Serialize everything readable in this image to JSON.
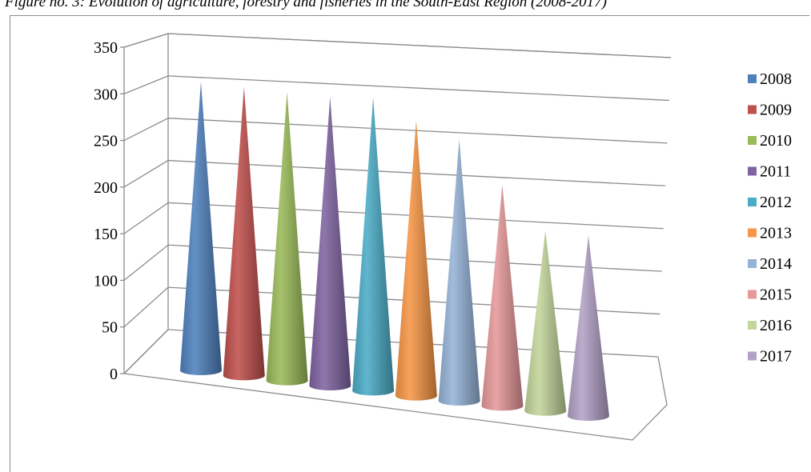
{
  "caption": "Figure no. 3: Evolution of agriculture, forestry and fisheries in the South-East Region (2008-2017)",
  "chart_data": {
    "type": "bar",
    "style": "3d-cone",
    "title": "",
    "xlabel": "",
    "ylabel": "",
    "ylim": [
      0,
      350
    ],
    "yticks": [
      0,
      50,
      100,
      150,
      200,
      250,
      300,
      350
    ],
    "grid": true,
    "legend_position": "right",
    "series": [
      {
        "name": "2008",
        "value": 320,
        "color": "#4f81bd"
      },
      {
        "name": "2009",
        "value": 320,
        "color": "#c0504d"
      },
      {
        "name": "2010",
        "value": 320,
        "color": "#9bbb59"
      },
      {
        "name": "2011",
        "value": 320,
        "color": "#8064a2"
      },
      {
        "name": "2012",
        "value": 325,
        "color": "#4bacc6"
      },
      {
        "name": "2013",
        "value": 305,
        "color": "#f79646"
      },
      {
        "name": "2014",
        "value": 290,
        "color": "#95b3d7"
      },
      {
        "name": "2015",
        "value": 245,
        "color": "#e6999a"
      },
      {
        "name": "2016",
        "value": 200,
        "color": "#c3d69b"
      },
      {
        "name": "2017",
        "value": 200,
        "color": "#b3a2c7"
      }
    ]
  }
}
